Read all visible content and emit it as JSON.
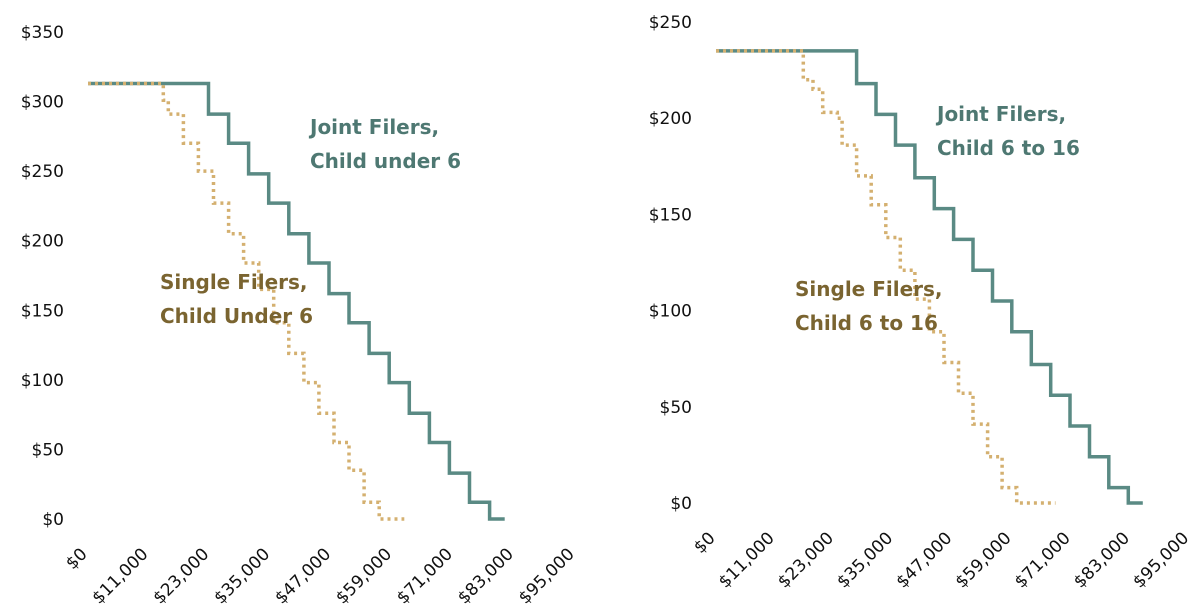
{
  "colors": {
    "joint": "#5A8A84",
    "single": "#D4B070",
    "joint_text": "#4E7872",
    "single_text": "#7A6430"
  },
  "chart_data": [
    {
      "type": "line",
      "title": "",
      "xlabel": "",
      "ylabel": "",
      "x_ticks": [
        "$0",
        "$11,000",
        "$23,000",
        "$35,000",
        "$47,000",
        "$59,000",
        "$71,000",
        "$83,000",
        "$95,000"
      ],
      "y_ticks": [
        "$0",
        "$50",
        "$100",
        "$150",
        "$200",
        "$250",
        "$300",
        "$350"
      ],
      "xlim": [
        0,
        100000
      ],
      "ylim": [
        0,
        350
      ],
      "grid": false,
      "series": [
        {
          "key": "joint",
          "style": "solid",
          "points": [
            [
              0,
              313
            ],
            [
              24000,
              313
            ],
            [
              24000,
              291
            ],
            [
              28000,
              291
            ],
            [
              28000,
              270
            ],
            [
              32000,
              270
            ],
            [
              32000,
              248
            ],
            [
              36000,
              248
            ],
            [
              36000,
              227
            ],
            [
              40000,
              227
            ],
            [
              40000,
              205
            ],
            [
              44000,
              205
            ],
            [
              44000,
              184
            ],
            [
              48000,
              184
            ],
            [
              48000,
              162
            ],
            [
              52000,
              162
            ],
            [
              52000,
              141
            ],
            [
              56000,
              141
            ],
            [
              56000,
              119
            ],
            [
              60000,
              119
            ],
            [
              60000,
              98
            ],
            [
              64000,
              98
            ],
            [
              64000,
              76
            ],
            [
              68000,
              76
            ],
            [
              68000,
              55
            ],
            [
              72000,
              55
            ],
            [
              72000,
              33
            ],
            [
              76000,
              33
            ],
            [
              76000,
              12
            ],
            [
              80000,
              12
            ],
            [
              80000,
              0
            ],
            [
              83000,
              0
            ]
          ]
        },
        {
          "key": "single",
          "style": "dotted",
          "points": [
            [
              0,
              313
            ],
            [
              15000,
              313
            ],
            [
              15000,
              301
            ],
            [
              16000,
              301
            ],
            [
              16000,
              291
            ],
            [
              19000,
              291
            ],
            [
              19000,
              270
            ],
            [
              22000,
              270
            ],
            [
              22000,
              250
            ],
            [
              25000,
              250
            ],
            [
              25000,
              227
            ],
            [
              28000,
              227
            ],
            [
              28000,
              205
            ],
            [
              31000,
              205
            ],
            [
              31000,
              184
            ],
            [
              34000,
              184
            ],
            [
              34000,
              165
            ],
            [
              37000,
              165
            ],
            [
              37000,
              141
            ],
            [
              40000,
              141
            ],
            [
              40000,
              119
            ],
            [
              43000,
              119
            ],
            [
              43000,
              98
            ],
            [
              46000,
              98
            ],
            [
              46000,
              76
            ],
            [
              49000,
              76
            ],
            [
              49000,
              55
            ],
            [
              52000,
              55
            ],
            [
              52000,
              35
            ],
            [
              55000,
              35
            ],
            [
              55000,
              12
            ],
            [
              58000,
              12
            ],
            [
              58000,
              0
            ],
            [
              63000,
              0
            ]
          ]
        }
      ],
      "annotations": [
        {
          "key": "joint",
          "lines": [
            "Joint Filers,",
            "Child under 6"
          ]
        },
        {
          "key": "single",
          "lines": [
            "Single Filers,",
            "Child Under 6"
          ]
        }
      ]
    },
    {
      "type": "line",
      "title": "",
      "xlabel": "",
      "ylabel": "",
      "x_ticks": [
        "$0",
        "$11,000",
        "$23,000",
        "$35,000",
        "$47,000",
        "$59,000",
        "$71,000",
        "$83,000",
        "$95,000"
      ],
      "y_ticks": [
        "$0",
        "$50",
        "$100",
        "$150",
        "$200",
        "$250"
      ],
      "xlim": [
        0,
        100000
      ],
      "ylim": [
        0,
        250
      ],
      "grid": false,
      "series": [
        {
          "key": "joint",
          "style": "solid",
          "points": [
            [
              0,
              235
            ],
            [
              29000,
              235
            ],
            [
              29000,
              218
            ],
            [
              33000,
              218
            ],
            [
              33000,
              202
            ],
            [
              37000,
              202
            ],
            [
              37000,
              186
            ],
            [
              41000,
              186
            ],
            [
              41000,
              169
            ],
            [
              45000,
              169
            ],
            [
              45000,
              153
            ],
            [
              49000,
              153
            ],
            [
              49000,
              137
            ],
            [
              53000,
              137
            ],
            [
              53000,
              121
            ],
            [
              57000,
              121
            ],
            [
              57000,
              105
            ],
            [
              61000,
              105
            ],
            [
              61000,
              89
            ],
            [
              65000,
              89
            ],
            [
              65000,
              72
            ],
            [
              69000,
              72
            ],
            [
              69000,
              56
            ],
            [
              73000,
              56
            ],
            [
              73000,
              40
            ],
            [
              77000,
              40
            ],
            [
              77000,
              24
            ],
            [
              81000,
              24
            ],
            [
              81000,
              8
            ],
            [
              85000,
              8
            ],
            [
              85000,
              0
            ],
            [
              88000,
              0
            ]
          ]
        },
        {
          "key": "single",
          "style": "dotted",
          "points": [
            [
              0,
              235
            ],
            [
              18000,
              235
            ],
            [
              18000,
              220
            ],
            [
              20000,
              220
            ],
            [
              20000,
              215
            ],
            [
              22000,
              215
            ],
            [
              22000,
              203
            ],
            [
              25000,
              203
            ],
            [
              25000,
              200
            ],
            [
              26000,
              200
            ],
            [
              26000,
              186
            ],
            [
              29000,
              186
            ],
            [
              29000,
              170
            ],
            [
              32000,
              170
            ],
            [
              32000,
              155
            ],
            [
              35000,
              155
            ],
            [
              35000,
              138
            ],
            [
              38000,
              138
            ],
            [
              38000,
              121
            ],
            [
              41000,
              121
            ],
            [
              41000,
              106
            ],
            [
              44000,
              106
            ],
            [
              44000,
              89
            ],
            [
              47000,
              89
            ],
            [
              47000,
              73
            ],
            [
              50000,
              73
            ],
            [
              50000,
              57
            ],
            [
              53000,
              57
            ],
            [
              53000,
              41
            ],
            [
              56000,
              41
            ],
            [
              56000,
              24
            ],
            [
              59000,
              24
            ],
            [
              59000,
              8
            ],
            [
              62000,
              8
            ],
            [
              62000,
              0
            ],
            [
              70000,
              0
            ]
          ]
        }
      ],
      "annotations": [
        {
          "key": "joint",
          "lines": [
            "Joint Filers,",
            "Child 6 to 16"
          ]
        },
        {
          "key": "single",
          "lines": [
            "Single Filers,",
            "Child 6 to 16"
          ]
        }
      ]
    }
  ]
}
